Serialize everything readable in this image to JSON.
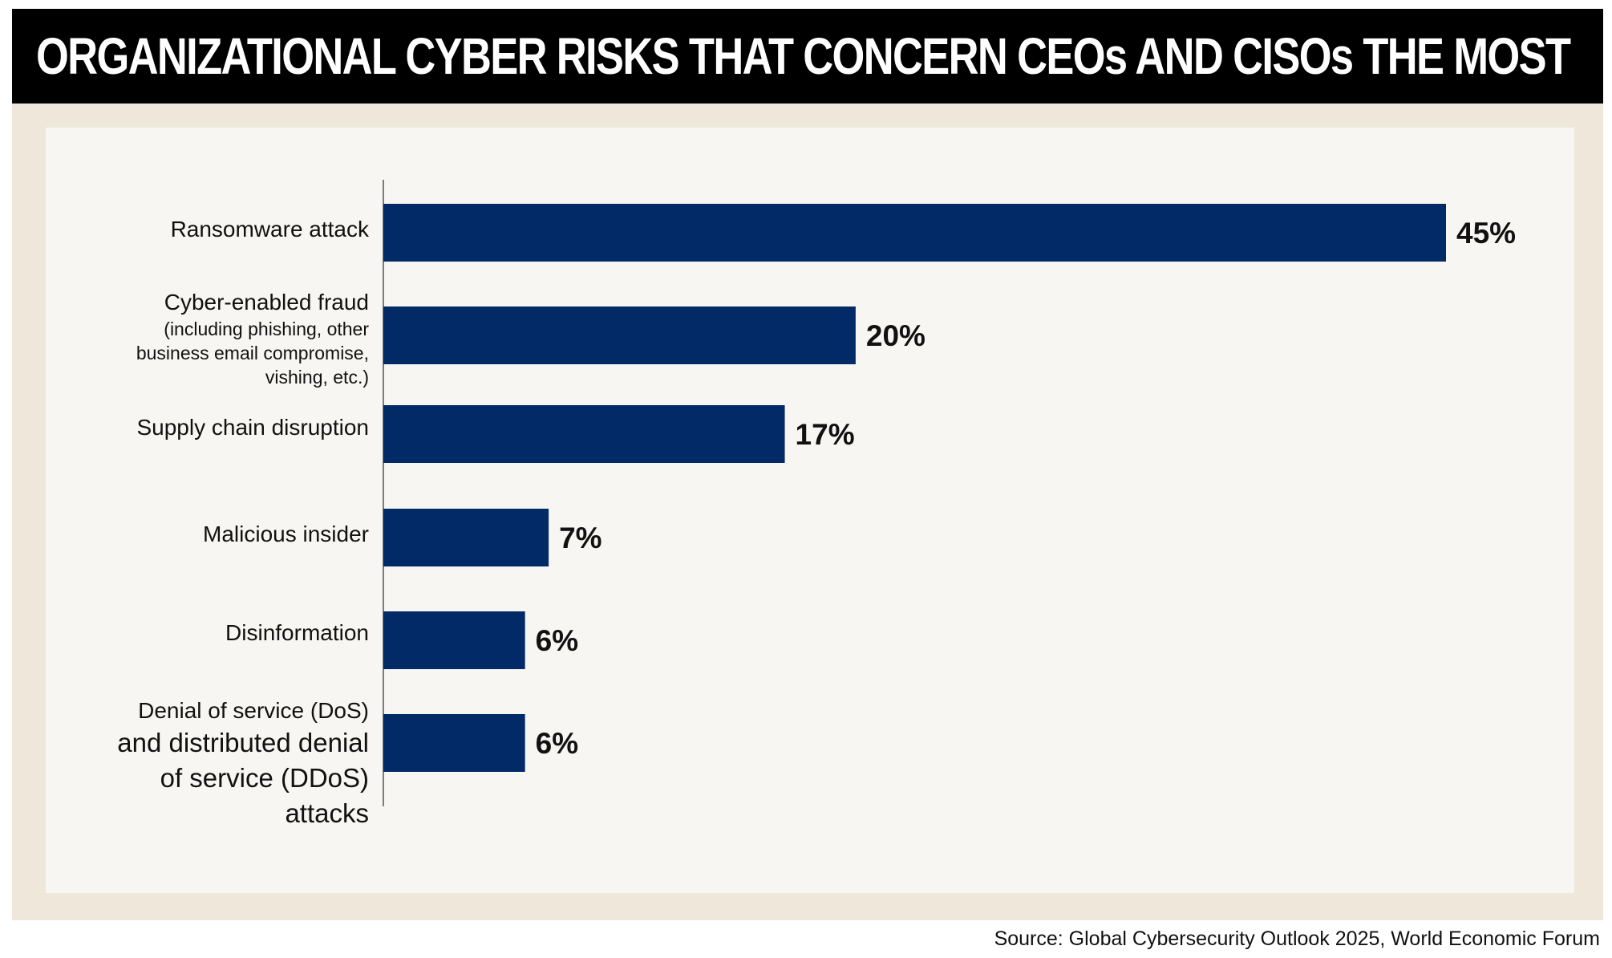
{
  "title": "ORGANIZATIONAL CYBER RISKS THAT CONCERN CEOs AND CISOs THE MOST",
  "source": "Source: Global Cybersecurity Outlook 2025, World Economic Forum",
  "colors": {
    "bar": "#022a66",
    "title_background": "#000000",
    "outer_panel": "#efe8da",
    "inner_panel": "#f8f6f2",
    "axis": "#555555"
  },
  "chart_data": {
    "type": "bar",
    "orientation": "horizontal",
    "categories": [
      "Ransomware attack",
      "Cyber-enabled fraud (including phishing, other business email compromise, vishing, etc.)",
      "Supply chain disruption",
      "Malicious insider",
      "Disinformation",
      "Denial of service (DoS) and distributed denial of service (DDoS) attacks"
    ],
    "category_lines": [
      {
        "main": "Ransomware attack"
      },
      {
        "main": "Cyber-enabled fraud",
        "sub": [
          "(including phishing, other",
          "business email compromise,",
          "vishing, etc.)"
        ]
      },
      {
        "main": "Supply chain disruption"
      },
      {
        "main": "Malicious insider"
      },
      {
        "main": "Disinformation"
      },
      {
        "main": "Denial of service (DoS)",
        "big": [
          "and distributed denial",
          "of service (DDoS)",
          "attacks"
        ]
      }
    ],
    "values": [
      45,
      20,
      17,
      7,
      6,
      6
    ],
    "value_labels": [
      "45%",
      "20%",
      "17%",
      "7%",
      "6%",
      "6%"
    ],
    "unit": "%",
    "xlim": [
      0,
      45
    ],
    "grid": false,
    "legend": "none"
  }
}
